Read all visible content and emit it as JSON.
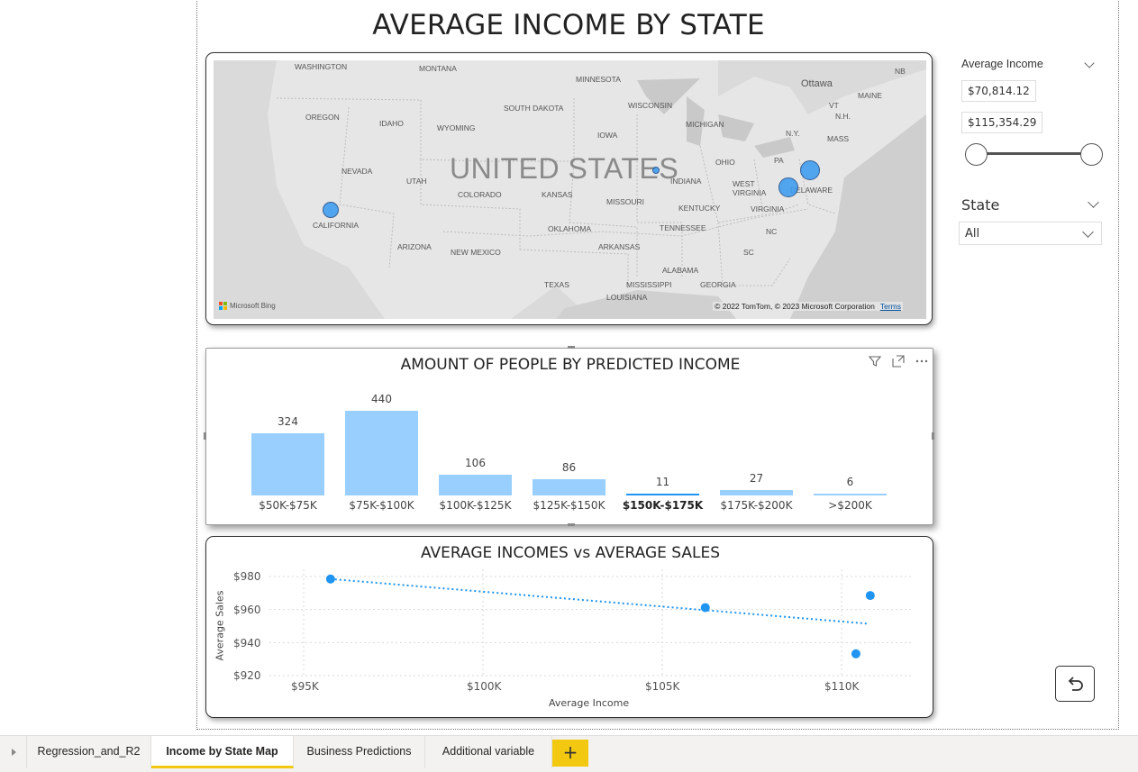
{
  "page": {
    "title": "AVERAGE INCOME BY STATE"
  },
  "map": {
    "country_label": "UNITED STATES",
    "state_labels": [
      "WASHINGTON",
      "MONTANA",
      "MINNESOTA",
      "WISCONSIN",
      "MICHIGAN",
      "SOUTH DAKOTA",
      "OREGON",
      "IDAHO",
      "WYOMING",
      "IOWA",
      "NEVADA",
      "UTAH",
      "COLORADO",
      "KANSAS",
      "MISSOURI",
      "INDIANA",
      "OHIO",
      "PA",
      "N.Y.",
      "MAINE",
      "VT",
      "N.H.",
      "MASS",
      "NB",
      "CALIFORNIA",
      "WEST VIRGINIA",
      "DELAWARE",
      "KENTUCKY",
      "VIRGINIA",
      "OKLAHOMA",
      "TENNESSEE",
      "NC",
      "ARIZONA",
      "NEW MEXICO",
      "ARKANSAS",
      "SC",
      "ALABAMA",
      "TEXAS",
      "MISSISSIPPI",
      "GEORGIA",
      "LOUISIANA"
    ],
    "city_label": "Ottawa",
    "attribution": "Microsoft Bing",
    "copyright": "© 2022 TomTom, © 2023 Microsoft Corporation",
    "terms": "Terms"
  },
  "bar_chart": {
    "title": "AMOUNT OF PEOPLE BY PREDICTED INCOME",
    "icons": [
      "filter-icon",
      "focus-mode-icon",
      "more-options-icon"
    ]
  },
  "scatter_chart": {
    "title": "AVERAGE INCOMES vs AVERAGE SALES",
    "xlabel": "Average Income",
    "ylabel": "Average Sales",
    "y_ticks": [
      "$980",
      "$960",
      "$940",
      "$920"
    ],
    "x_ticks": [
      "$95K",
      "$100K",
      "$105K",
      "$110K"
    ]
  },
  "slicer_income": {
    "title": "Average Income",
    "min_value": "$70,814.12",
    "max_value": "$115,354.29"
  },
  "slicer_state": {
    "title": "State",
    "selected": "All"
  },
  "tabs": [
    {
      "label": "Regression_and_R2",
      "active": false
    },
    {
      "label": "Income by State Map",
      "active": true
    },
    {
      "label": "Business Predictions",
      "active": false
    },
    {
      "label": "Additional variable",
      "active": false
    }
  ],
  "add_tab_label": "+",
  "colors": {
    "accent": "#f2c811",
    "bar": "#99cfff",
    "point": "#1f94f0",
    "bubble": "#3d9bf0"
  },
  "chart_data": [
    {
      "type": "bar",
      "title": "AMOUNT OF PEOPLE BY PREDICTED INCOME",
      "categories": [
        "$50K-$75K",
        "$75K-$100K",
        "$100K-$125K",
        "$125K-$150K",
        "$150K-$175K",
        "$175K-$200K",
        ">$200K"
      ],
      "values": [
        324,
        440,
        106,
        86,
        11,
        27,
        6
      ],
      "xlabel": "",
      "ylabel": ""
    },
    {
      "type": "scatter",
      "title": "AVERAGE INCOMES vs AVERAGE SALES",
      "xlabel": "Average Income",
      "ylabel": "Average Sales",
      "xlim": [
        93500,
        112000
      ],
      "ylim": [
        920,
        985
      ],
      "x": [
        95750,
        106200,
        110800,
        110400
      ],
      "y": [
        978.5,
        961.2,
        968.5,
        933.2
      ],
      "trendline": {
        "x": [
          95750,
          110700
        ],
        "y": [
          978.5,
          951.5
        ]
      },
      "grid": true
    }
  ]
}
